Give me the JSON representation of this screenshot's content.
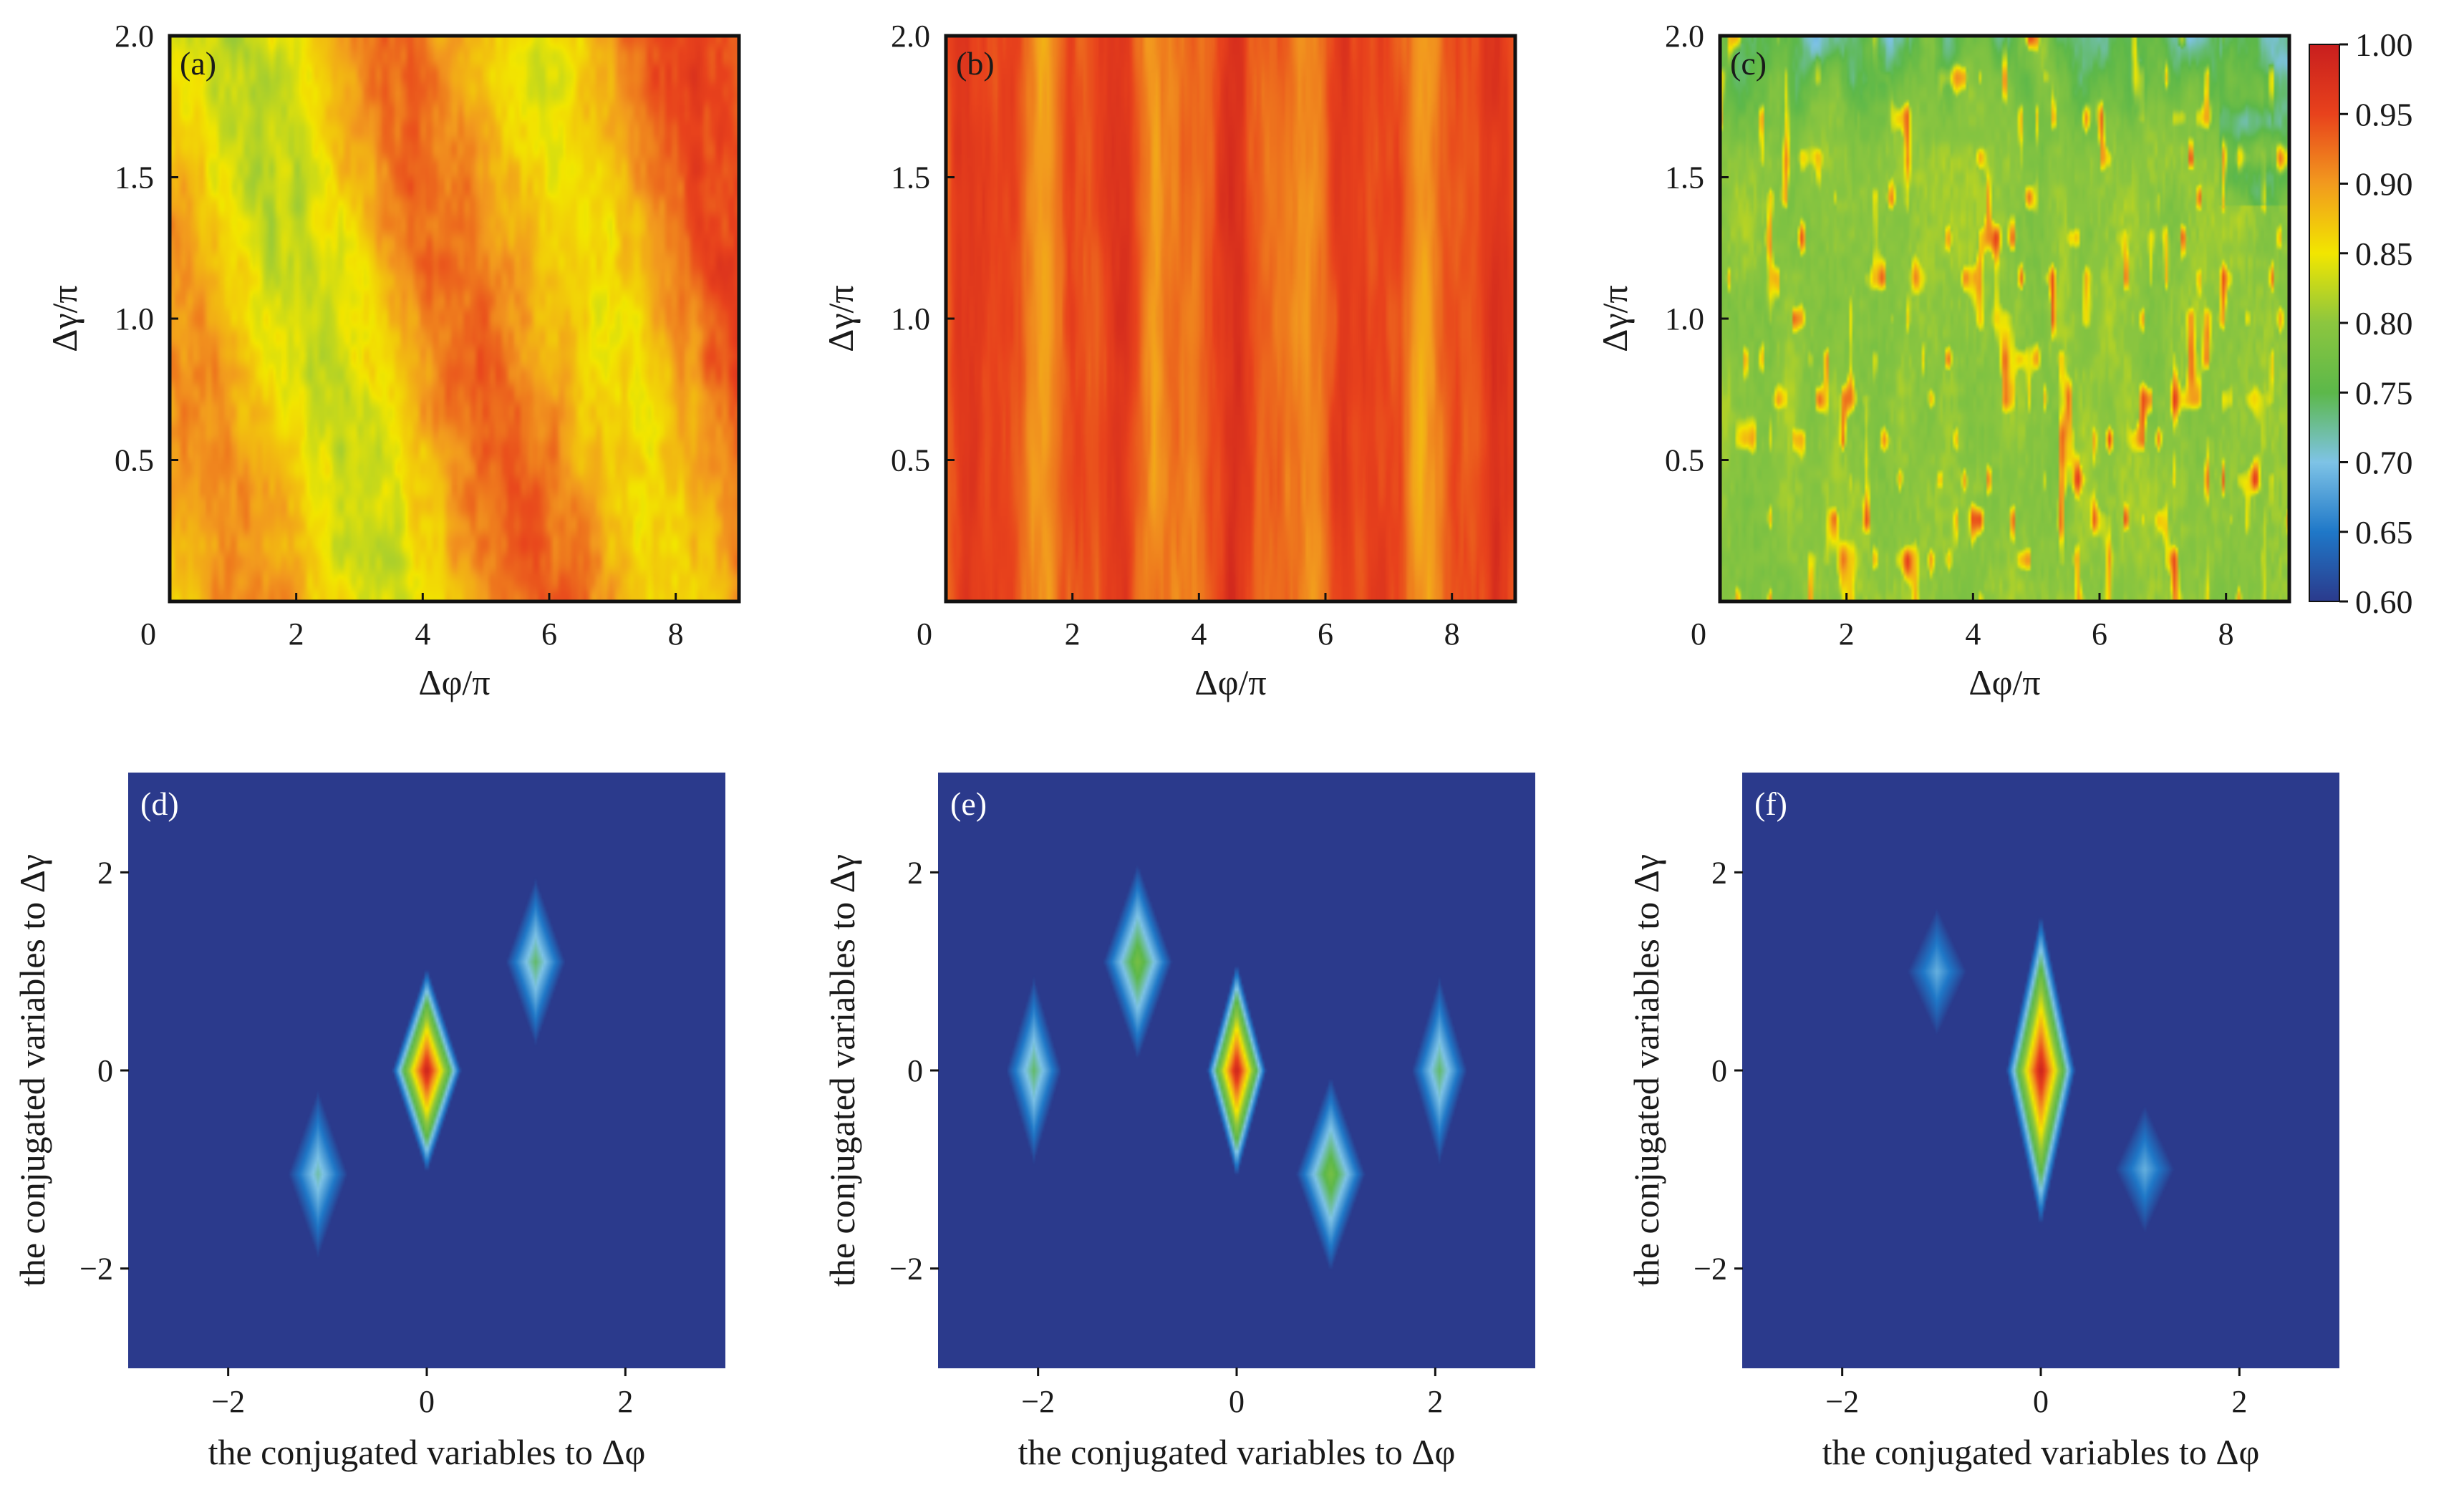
{
  "chart_data": [
    {
      "panel": "(a)",
      "type": "heatmap",
      "xlabel": "Δφ/π",
      "ylabel": "Δγ/π",
      "xlim": [
        0,
        9
      ],
      "ylim": [
        0,
        2
      ],
      "xticks": [
        "0",
        "2",
        "4",
        "6",
        "8"
      ],
      "yticks": [
        "0.5",
        "1.0",
        "1.5",
        "2.0"
      ],
      "pattern": "diagonal bands",
      "value_range": [
        0.8,
        1.0
      ]
    },
    {
      "panel": "(b)",
      "type": "heatmap",
      "xlabel": "Δφ/π",
      "ylabel": "Δγ/π",
      "xlim": [
        0,
        9
      ],
      "ylim": [
        0,
        2
      ],
      "xticks": [
        "0",
        "2",
        "4",
        "6",
        "8"
      ],
      "yticks": [
        "0.5",
        "1.0",
        "1.5",
        "2.0"
      ],
      "pattern": "vertical stripes",
      "value_range": [
        0.88,
        0.98
      ]
    },
    {
      "panel": "(c)",
      "type": "heatmap",
      "xlabel": "Δφ/π",
      "ylabel": "Δγ/π",
      "xlim": [
        0,
        9
      ],
      "ylim": [
        0,
        2
      ],
      "xticks": [
        "0",
        "2",
        "4",
        "6",
        "8"
      ],
      "yticks": [
        "0.5",
        "1.0",
        "1.5",
        "2.0"
      ],
      "pattern": "mostly flat with sparse peaks",
      "value_range": [
        0.62,
        0.97
      ],
      "colorbar": {
        "ticks": [
          "1.00",
          "0.95",
          "0.90",
          "0.85",
          "0.80",
          "0.75",
          "0.70",
          "0.65",
          "0.60"
        ],
        "range": [
          0.6,
          1.0
        ]
      }
    },
    {
      "panel": "(d)",
      "type": "heatmap",
      "xlabel": "the conjugated variables to Δφ",
      "ylabel": "the conjugated variables to Δγ",
      "xlim": [
        -3,
        3
      ],
      "ylim": [
        -3,
        3
      ],
      "xticks": [
        "−2",
        "0",
        "2"
      ],
      "yticks": [
        "−2",
        "0",
        "2"
      ],
      "peaks": [
        {
          "x": 0,
          "y": 0,
          "amp": 1.0,
          "wx": 0.35,
          "wy": 1.05
        },
        {
          "x": 1.1,
          "y": 1.1,
          "amp": 0.35,
          "wx": 0.3,
          "wy": 0.85
        },
        {
          "x": -1.1,
          "y": -1.05,
          "amp": 0.3,
          "wx": 0.3,
          "wy": 0.85
        }
      ]
    },
    {
      "panel": "(e)",
      "type": "heatmap",
      "xlabel": "the conjugated variables to Δφ",
      "ylabel": "the conjugated variables to Δγ",
      "xlim": [
        -3,
        3
      ],
      "ylim": [
        -3,
        3
      ],
      "xticks": [
        "−2",
        "0",
        "2"
      ],
      "yticks": [
        "−2",
        "0",
        "2"
      ],
      "peaks": [
        {
          "x": 0,
          "y": 0,
          "amp": 1.0,
          "wx": 0.3,
          "wy": 1.1
        },
        {
          "x": -1.0,
          "y": 1.1,
          "amp": 0.45,
          "wx": 0.35,
          "wy": 1.0
        },
        {
          "x": 0.95,
          "y": -1.05,
          "amp": 0.45,
          "wx": 0.35,
          "wy": 1.0
        },
        {
          "x": -2.05,
          "y": 0,
          "amp": 0.35,
          "wx": 0.28,
          "wy": 0.95
        },
        {
          "x": 2.05,
          "y": 0,
          "amp": 0.35,
          "wx": 0.28,
          "wy": 0.95
        }
      ]
    },
    {
      "panel": "(f)",
      "type": "heatmap",
      "xlabel": "the conjugated variables to Δφ",
      "ylabel": "the conjugated variables to Δγ",
      "xlim": [
        -3,
        3
      ],
      "ylim": [
        -3,
        3
      ],
      "xticks": [
        "−2",
        "0",
        "2"
      ],
      "yticks": [
        "−2",
        "0",
        "2"
      ],
      "peaks": [
        {
          "x": 0,
          "y": 0,
          "amp": 1.0,
          "wx": 0.35,
          "wy": 1.6
        },
        {
          "x": -1.05,
          "y": 1.0,
          "amp": 0.22,
          "wx": 0.3,
          "wy": 0.65
        },
        {
          "x": 1.05,
          "y": -1.0,
          "amp": 0.22,
          "wx": 0.3,
          "wy": 0.65
        }
      ]
    }
  ],
  "colors": {
    "colormap": [
      "#2b3a8c",
      "#1f78c8",
      "#7ec3e6",
      "#5cb84a",
      "#8cc63f",
      "#f2e600",
      "#f29a1e",
      "#e8421c",
      "#c81e1e"
    ],
    "background_low": "#3a4590"
  }
}
